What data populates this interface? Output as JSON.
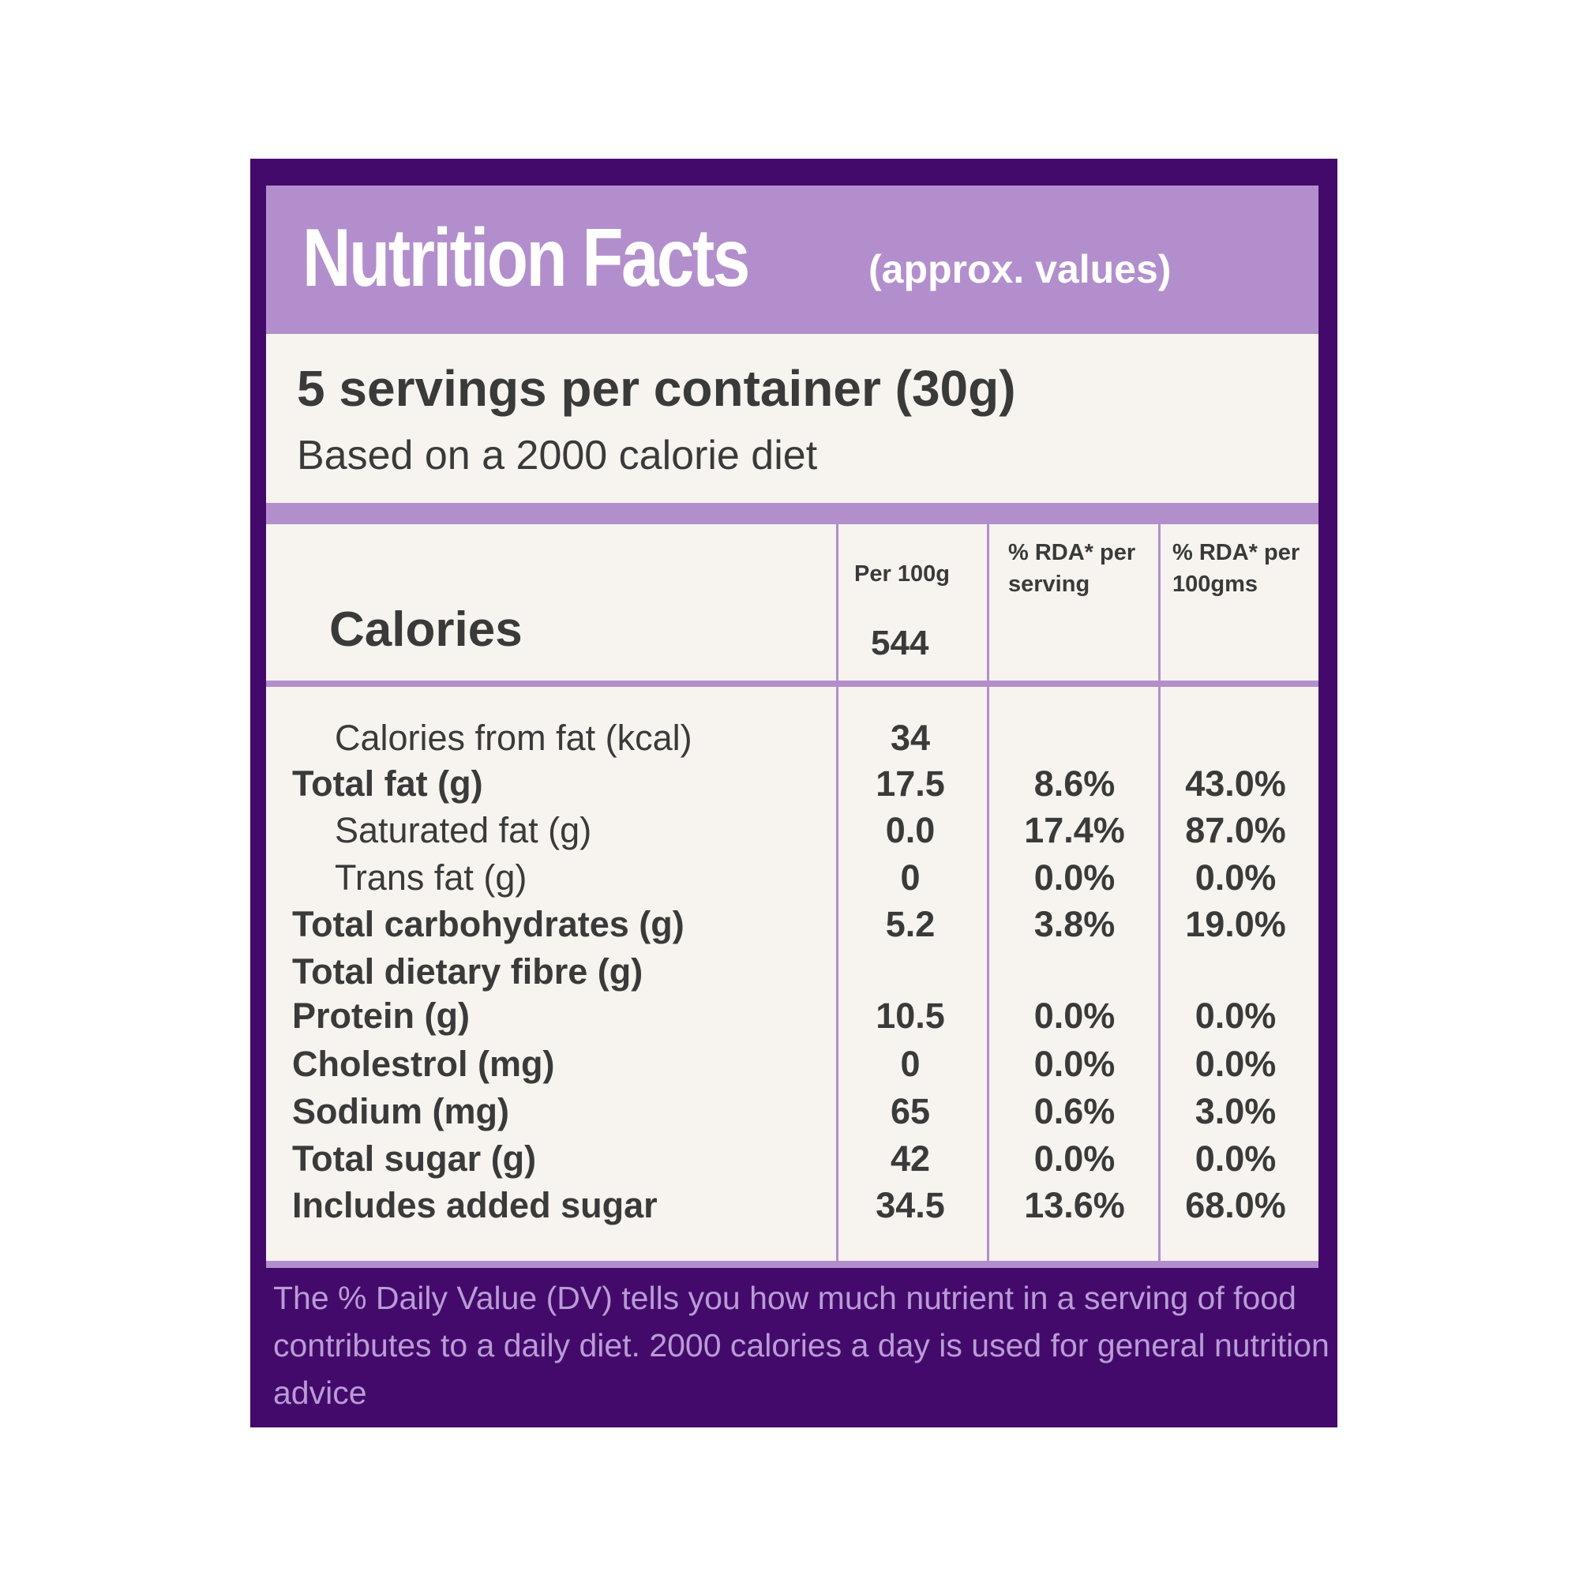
{
  "header": {
    "title": "Nutrition Facts",
    "subtitle": "(approx. values)"
  },
  "serving": {
    "servings": "5 servings per container (30g)",
    "basis": "Based on a 2000 calorie diet"
  },
  "table": {
    "columns": [
      "Per 100g",
      "% RDA* per serving",
      "% RDA* per 100gms"
    ],
    "calories": {
      "label": "Calories",
      "per_100g": "544"
    },
    "rows": [
      [
        "Calories from fat (kcal)",
        "34",
        null,
        null
      ],
      [
        "Total fat (g)",
        "17.5",
        "8.6%",
        "43.0%"
      ],
      [
        "Saturated fat (g)",
        "0.0",
        "17.4%",
        "87.0%"
      ],
      [
        "Trans fat (g)",
        "0",
        "0.0%",
        "0.0%"
      ],
      [
        "Total carbohydrates (g)",
        "5.2",
        "3.8%",
        "19.0%"
      ],
      [
        "Total dietary fibre (g)",
        null,
        null,
        null
      ],
      [
        "Protein (g)",
        "10.5",
        "0.0%",
        "0.0%"
      ],
      [
        "Cholestrol (mg)",
        "0",
        "0.0%",
        "0.0%"
      ],
      [
        "Sodium (mg)",
        "65",
        "0.6%",
        "3.0%"
      ],
      [
        "Total sugar (g)",
        "42",
        "0.0%",
        "0.0%"
      ],
      [
        "Includes added sugar",
        "34.5",
        "13.6%",
        "68.0%"
      ]
    ]
  },
  "footer": {
    "note": "The % Daily Value (DV) tells you how much nutrient in a serving of food contributes to a daily diet. 2000 calories a day is used for general nutrition advice"
  }
}
